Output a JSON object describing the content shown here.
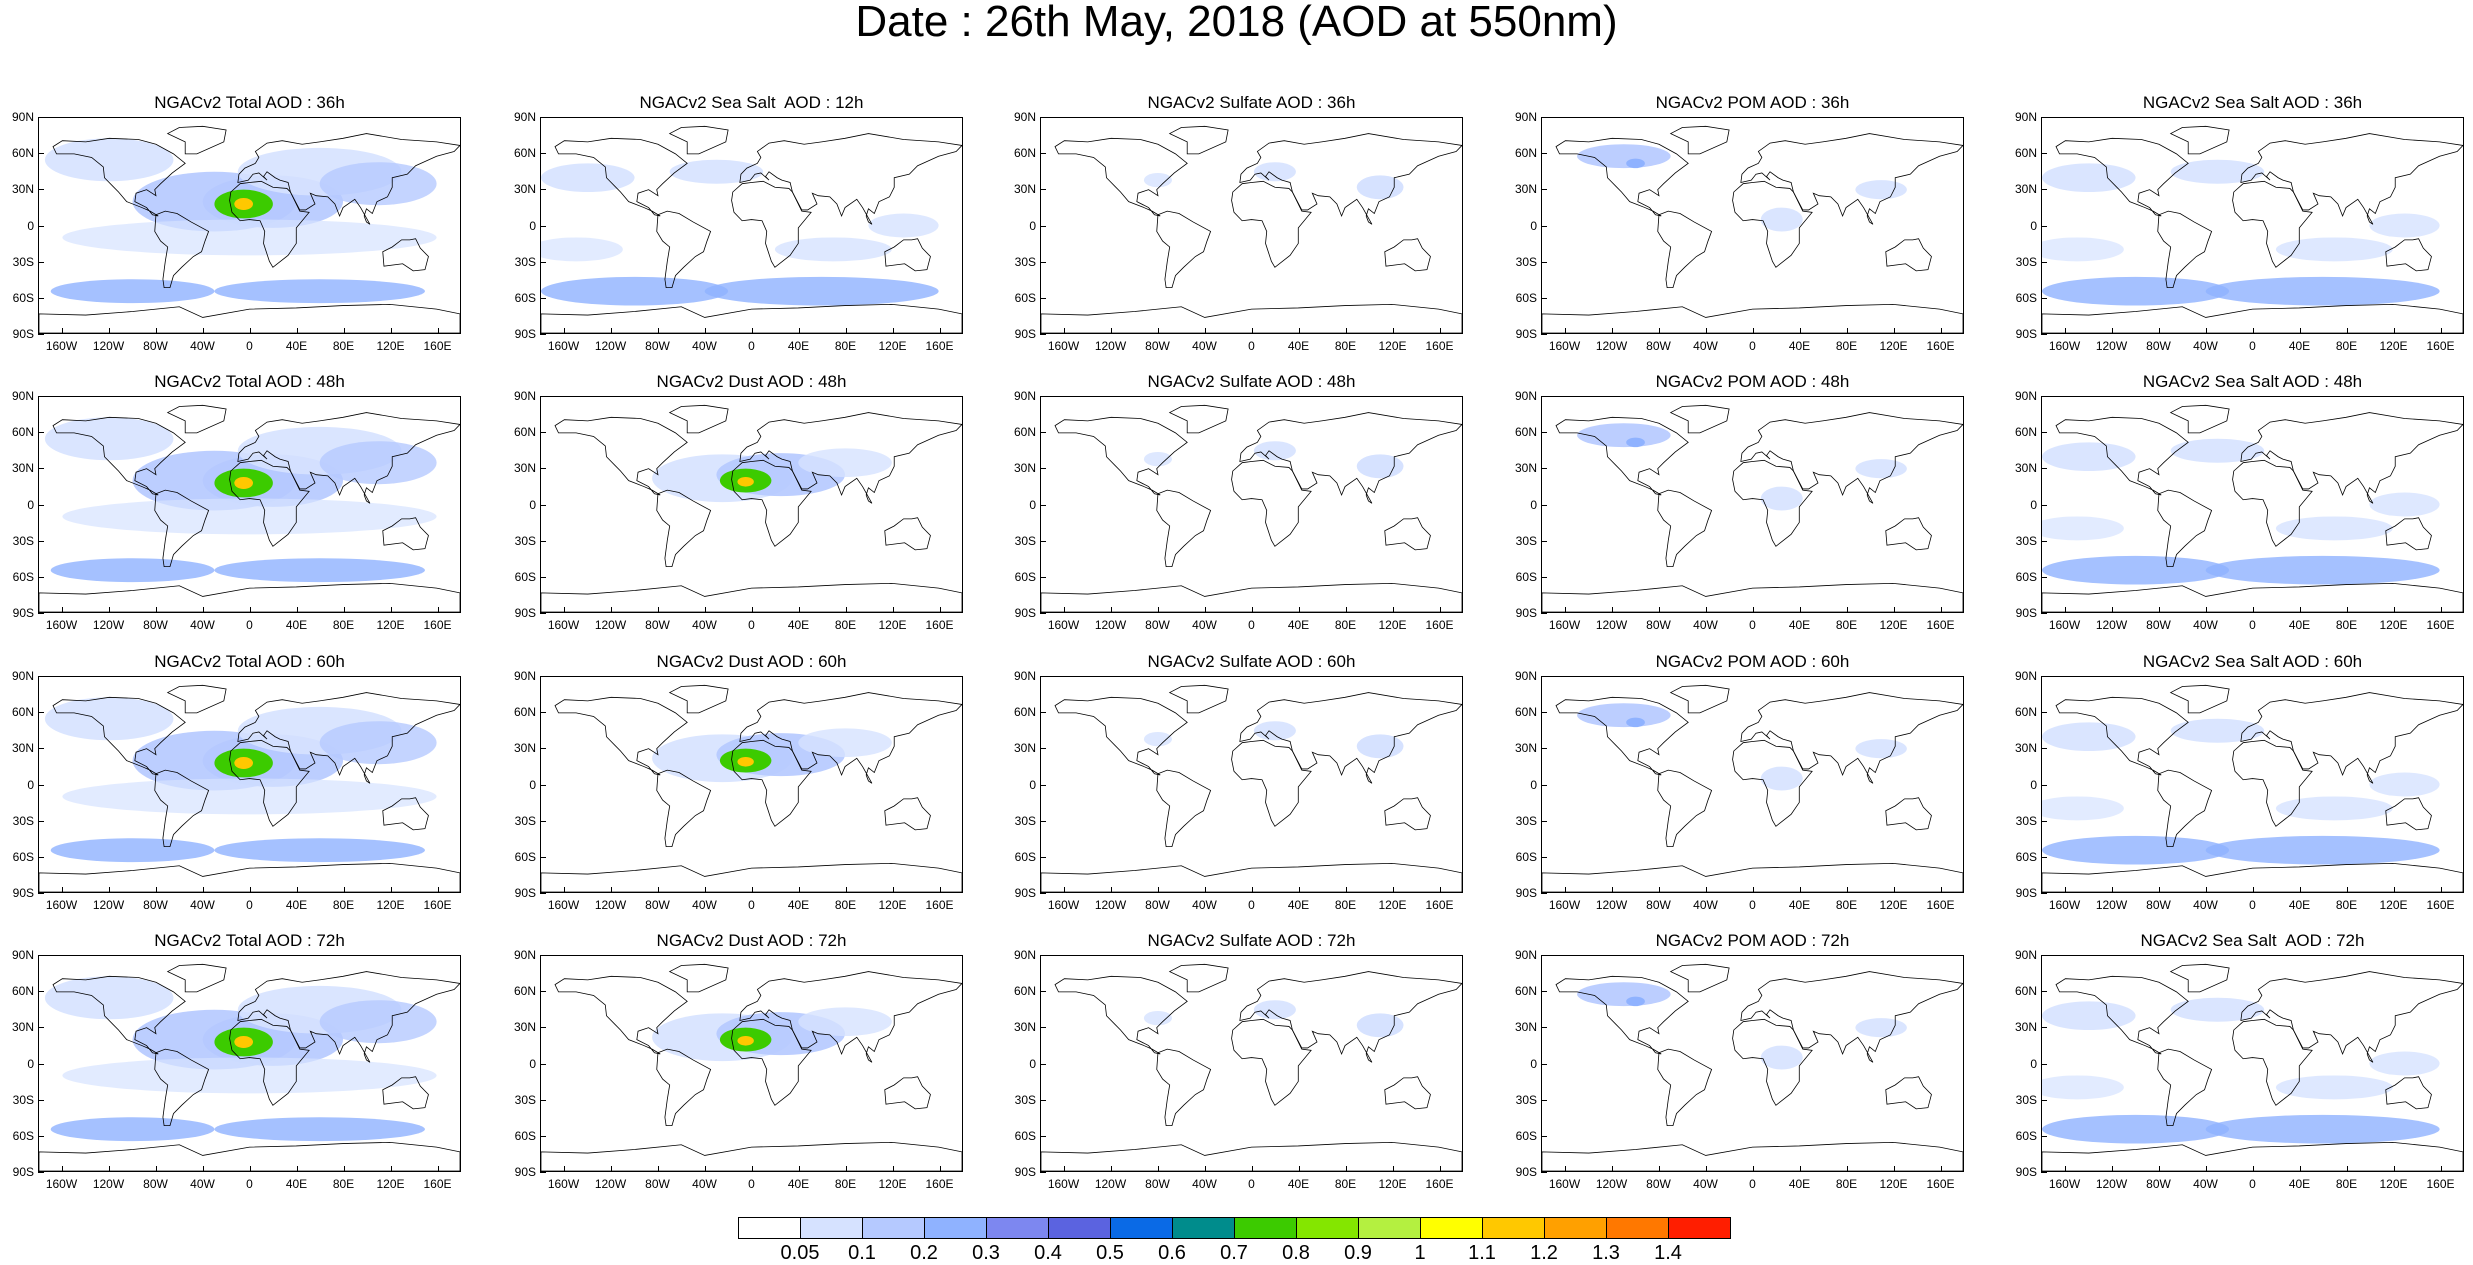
{
  "title": "Date : 26th May, 2018 (AOD at 550nm)",
  "panels": [
    [
      "NGACv2 Total AOD : 36h",
      "NGACv2 Sea Salt  AOD : 12h",
      "NGACv2 Sulfate AOD : 36h",
      "NGACv2 POM AOD : 36h",
      "NGACv2 Sea Salt AOD : 36h"
    ],
    [
      "NGACv2 Total AOD : 48h",
      "NGACv2 Dust AOD : 48h",
      "NGACv2 Sulfate AOD : 48h",
      "NGACv2 POM AOD : 48h",
      "NGACv2 Sea Salt AOD : 48h"
    ],
    [
      "NGACv2 Total AOD : 60h",
      "NGACv2 Dust AOD : 60h",
      "NGACv2 Sulfate AOD : 60h",
      "NGACv2 POM AOD : 60h",
      "NGACv2 Sea Salt AOD : 60h"
    ],
    [
      "NGACv2 Total AOD : 72h",
      "NGACv2 Dust AOD : 72h",
      "NGACv2 Sulfate AOD : 72h",
      "NGACv2 POM AOD : 72h",
      "NGACv2 Sea Salt  AOD : 72h"
    ]
  ],
  "lat_labels": [
    "90N",
    "60N",
    "30N",
    "0",
    "30S",
    "60S",
    "90S"
  ],
  "lon_labels": [
    "160W",
    "120W",
    "80W",
    "40W",
    "0",
    "40E",
    "80E",
    "120E",
    "160E"
  ],
  "colorbar": {
    "labels": [
      "0.05",
      "0.1",
      "0.2",
      "0.3",
      "0.4",
      "0.5",
      "0.6",
      "0.7",
      "0.8",
      "0.9",
      "1",
      "1.1",
      "1.2",
      "1.3",
      "1.4"
    ],
    "colors": [
      "#ffffff",
      "#d6e2ff",
      "#b5c9ff",
      "#8fb2ff",
      "#7d87f0",
      "#5b63e0",
      "#0a6ae6",
      "#008c8c",
      "#3ccb00",
      "#84e600",
      "#b4f040",
      "#ffff00",
      "#ffc800",
      "#ffa000",
      "#ff7800",
      "#ff1e00"
    ]
  },
  "field_colors": {
    "low": "#d6e2ff",
    "mid": "#b5c9ff",
    "high": "#8fb2ff",
    "dust_core": "#3ccb00",
    "dust_peak": "#ffc800",
    "coast": "#000000"
  }
}
